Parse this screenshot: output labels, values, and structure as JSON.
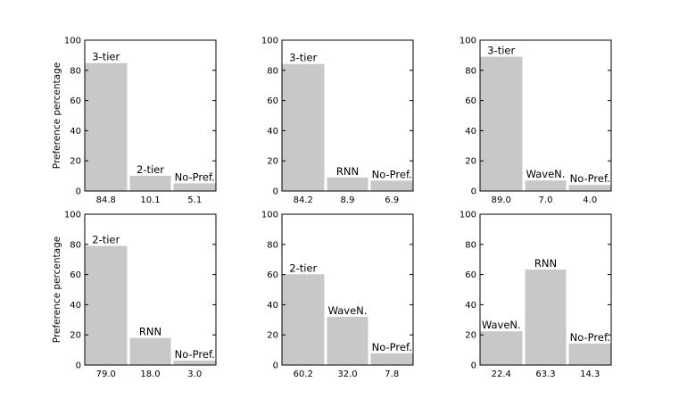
{
  "chart_data": [
    {
      "type": "bar",
      "ylabel": "Preference percentage",
      "ylim": [
        0,
        100
      ],
      "yticks": [
        0,
        20,
        40,
        60,
        80,
        100
      ],
      "categories": [
        "3-tier",
        "2-tier",
        "No-Pref."
      ],
      "values": [
        84.8,
        10.1,
        5.1
      ],
      "value_labels": [
        "84.8",
        "10.1",
        "5.1"
      ]
    },
    {
      "type": "bar",
      "ylabel": "",
      "ylim": [
        0,
        100
      ],
      "yticks": [
        0,
        20,
        40,
        60,
        80,
        100
      ],
      "categories": [
        "3-tier",
        "RNN",
        "No-Pref."
      ],
      "values": [
        84.2,
        8.9,
        6.9
      ],
      "value_labels": [
        "84.2",
        "8.9",
        "6.9"
      ]
    },
    {
      "type": "bar",
      "ylabel": "",
      "ylim": [
        0,
        100
      ],
      "yticks": [
        0,
        20,
        40,
        60,
        80,
        100
      ],
      "categories": [
        "3-tier",
        "WaveN.",
        "No-Pref."
      ],
      "values": [
        89.0,
        7.0,
        4.0
      ],
      "value_labels": [
        "89.0",
        "7.0",
        "4.0"
      ]
    },
    {
      "type": "bar",
      "ylabel": "Preference percentage",
      "ylim": [
        0,
        100
      ],
      "yticks": [
        0,
        20,
        40,
        60,
        80,
        100
      ],
      "categories": [
        "2-tier",
        "RNN",
        "No-Pref."
      ],
      "values": [
        79.0,
        18.0,
        3.0
      ],
      "value_labels": [
        "79.0",
        "18.0",
        "3.0"
      ]
    },
    {
      "type": "bar",
      "ylabel": "",
      "ylim": [
        0,
        100
      ],
      "yticks": [
        0,
        20,
        40,
        60,
        80,
        100
      ],
      "categories": [
        "2-tier",
        "WaveN.",
        "No-Pref."
      ],
      "values": [
        60.2,
        32.0,
        7.8
      ],
      "value_labels": [
        "60.2",
        "32.0",
        "7.8"
      ]
    },
    {
      "type": "bar",
      "ylabel": "",
      "ylim": [
        0,
        100
      ],
      "yticks": [
        0,
        20,
        40,
        60,
        80,
        100
      ],
      "categories": [
        "WaveN.",
        "RNN",
        "No-Pref."
      ],
      "values": [
        22.4,
        63.3,
        14.3
      ],
      "value_labels": [
        "22.4",
        "63.3",
        "14.3"
      ]
    }
  ],
  "colors": {
    "bar": "#c8c8c8",
    "axis": "#000000"
  }
}
